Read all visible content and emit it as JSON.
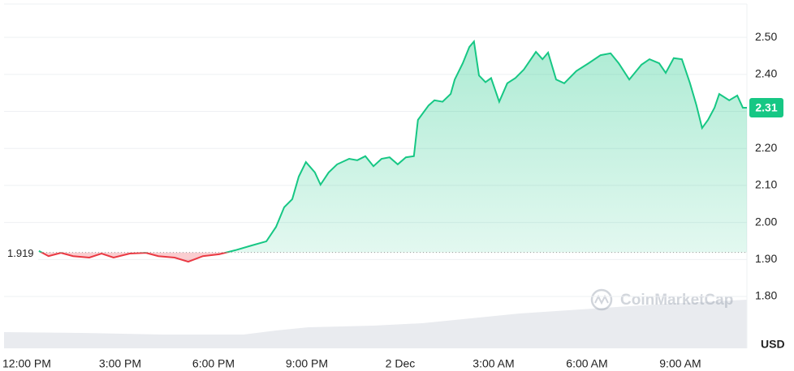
{
  "chart_data": {
    "type": "line",
    "watermark": "CoinMarketCap",
    "y_unit": "USD",
    "baseline": 1.919,
    "last_price": 2.31,
    "up_color": "#16c784",
    "down_color": "#ea3943",
    "xlim": [
      -0.73,
      23.14
    ],
    "xticks": [
      {
        "value": 0,
        "label": "12:00 PM"
      },
      {
        "value": 3,
        "label": "3:00 PM"
      },
      {
        "value": 6,
        "label": "6:00 PM"
      },
      {
        "value": 9,
        "label": "9:00 PM"
      },
      {
        "value": 12,
        "label": "2 Dec"
      },
      {
        "value": 15,
        "label": "3:00 AM"
      },
      {
        "value": 18,
        "label": "6:00 AM"
      },
      {
        "value": 21,
        "label": "9:00 AM"
      }
    ],
    "ylim": [
      1.66,
      2.59
    ],
    "yticks": [
      {
        "value": 1.8,
        "label": "1.80"
      },
      {
        "value": 1.9,
        "label": "1.90"
      },
      {
        "value": 2.0,
        "label": "2.00"
      },
      {
        "value": 2.1,
        "label": "2.10"
      },
      {
        "value": 2.2,
        "label": "2.20"
      },
      {
        "value": 2.3,
        "label": "2.30"
      },
      {
        "value": 2.4,
        "label": "2.40"
      },
      {
        "value": 2.5,
        "label": "2.50"
      }
    ],
    "grid": true,
    "x": [
      0.39,
      0.7,
      1.1,
      1.49,
      2.01,
      2.4,
      2.79,
      3.31,
      3.83,
      4.23,
      4.75,
      5.19,
      5.66,
      6.18,
      6.7,
      7.23,
      7.7,
      8.01,
      8.27,
      8.53,
      8.74,
      8.97,
      9.26,
      9.44,
      9.7,
      9.97,
      10.36,
      10.62,
      10.88,
      11.14,
      11.4,
      11.66,
      11.92,
      12.18,
      12.44,
      12.57,
      12.91,
      13.1,
      13.36,
      13.62,
      13.75,
      14.01,
      14.22,
      14.37,
      14.53,
      14.74,
      14.92,
      15.18,
      15.44,
      15.7,
      15.97,
      16.36,
      16.57,
      16.75,
      17.01,
      17.27,
      17.66,
      18.05,
      18.44,
      18.76,
      19.02,
      19.36,
      19.75,
      20.01,
      20.32,
      20.53,
      20.79,
      21.05,
      21.31,
      21.52,
      21.7,
      21.89,
      22.1,
      22.25,
      22.57,
      22.83,
      23.01,
      23.14
    ],
    "values": [
      1.923,
      1.909,
      1.918,
      1.909,
      1.905,
      1.916,
      1.905,
      1.916,
      1.918,
      1.909,
      1.905,
      1.894,
      1.909,
      1.914,
      1.925,
      1.938,
      1.949,
      1.988,
      2.041,
      2.063,
      2.124,
      2.163,
      2.135,
      2.102,
      2.135,
      2.157,
      2.172,
      2.168,
      2.179,
      2.152,
      2.172,
      2.176,
      2.157,
      2.176,
      2.179,
      2.277,
      2.316,
      2.33,
      2.326,
      2.347,
      2.386,
      2.43,
      2.474,
      2.489,
      2.397,
      2.379,
      2.39,
      2.326,
      2.376,
      2.39,
      2.413,
      2.461,
      2.441,
      2.459,
      2.386,
      2.376,
      2.409,
      2.43,
      2.452,
      2.457,
      2.43,
      2.386,
      2.426,
      2.441,
      2.43,
      2.404,
      2.444,
      2.441,
      2.376,
      2.316,
      2.255,
      2.277,
      2.31,
      2.347,
      2.33,
      2.343,
      2.31,
      2.31
    ]
  }
}
